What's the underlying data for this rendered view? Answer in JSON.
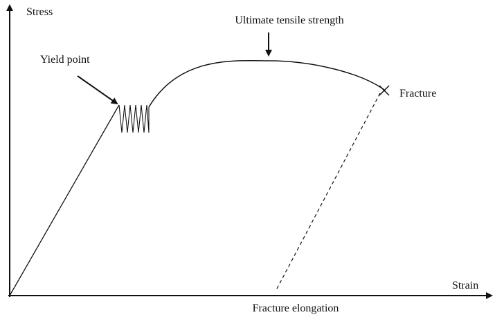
{
  "axes": {
    "y_label": "Stress",
    "x_label": "Strain"
  },
  "annotations": {
    "yield": "Yield point",
    "uts": "Ultimate tensile strength",
    "fracture": "Fracture",
    "elongation": "Fracture elongation"
  }
}
